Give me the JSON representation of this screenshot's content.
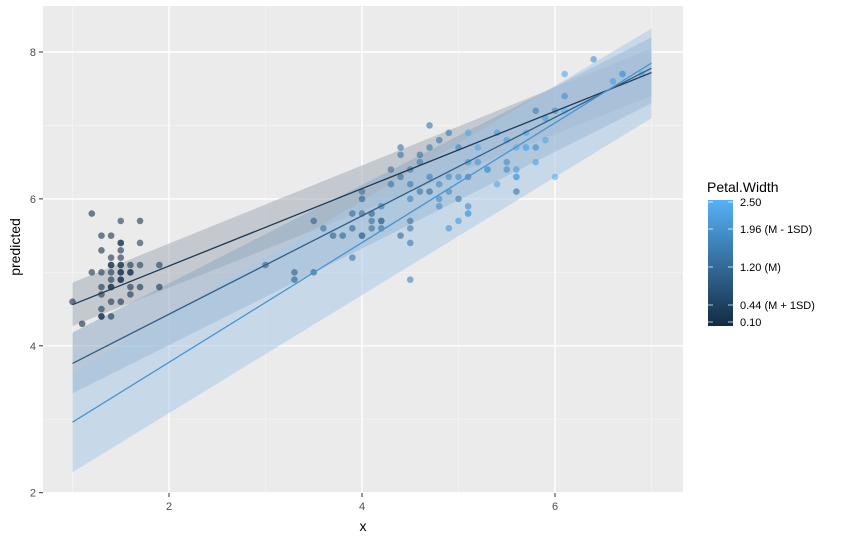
{
  "chart_data": {
    "type": "scatter",
    "title": "",
    "xlabel": "x",
    "ylabel": "predicted",
    "xlim": [
      0.75,
      7.3
    ],
    "ylim": [
      2.0,
      8.6
    ],
    "x_ticks": [
      2,
      4,
      6
    ],
    "y_ticks": [
      2,
      4,
      6,
      8
    ],
    "grid": true,
    "legend": {
      "title": "Petal.Width",
      "position": "right",
      "type": "colorbar",
      "range": [
        0.1,
        2.5
      ],
      "color_low": "#132B43",
      "color_high": "#56B1F7",
      "ticks": [
        {
          "value": 2.5,
          "label": "2.50"
        },
        {
          "value": 1.96,
          "label": "1.96 (M - 1SD)"
        },
        {
          "value": 1.2,
          "label": "1.20 (M)"
        },
        {
          "value": 0.44,
          "label": "0.44 (M + 1SD)"
        },
        {
          "value": 0.1,
          "label": "0.10"
        }
      ]
    },
    "series": [
      {
        "name": "0.44 (M + 1SD)",
        "type": "line",
        "color": "#1f3a54",
        "x": [
          1,
          7
        ],
        "y": [
          4.56,
          7.72
        ],
        "ribbon_low": [
          4.27,
          7.4
        ],
        "ribbon_high": [
          4.86,
          8.05
        ],
        "ribbon_color": "#a3adb8"
      },
      {
        "name": "1.20 (M)",
        "type": "line",
        "color": "#2f5f86",
        "x": [
          1,
          7
        ],
        "y": [
          3.76,
          7.78
        ],
        "ribbon_low": [
          3.35,
          7.3
        ],
        "ribbon_high": [
          4.18,
          8.2
        ],
        "ribbon_color": "#8fa9c4"
      },
      {
        "name": "1.96 (M - 1SD)",
        "type": "line",
        "color": "#4a93d0",
        "x": [
          1,
          7
        ],
        "y": [
          2.96,
          7.85
        ],
        "ribbon_low": [
          2.28,
          7.1
        ],
        "ribbon_high": [
          3.63,
          8.32
        ],
        "ribbon_color": "#a9c9e6"
      }
    ],
    "points": [
      [
        1.0,
        4.6,
        0.2
      ],
      [
        1.1,
        4.3,
        0.1
      ],
      [
        1.2,
        5.8,
        0.2
      ],
      [
        1.2,
        5.0,
        0.2
      ],
      [
        1.3,
        4.4,
        0.2
      ],
      [
        1.3,
        5.5,
        0.2
      ],
      [
        1.3,
        4.5,
        0.3
      ],
      [
        1.3,
        4.4,
        0.2
      ],
      [
        1.3,
        5.0,
        0.3
      ],
      [
        1.3,
        4.8,
        0.2
      ],
      [
        1.3,
        5.3,
        0.2
      ],
      [
        1.3,
        4.7,
        0.2
      ],
      [
        1.4,
        5.1,
        0.2
      ],
      [
        1.4,
        4.9,
        0.2
      ],
      [
        1.4,
        5.0,
        0.2
      ],
      [
        1.4,
        4.6,
        0.3
      ],
      [
        1.4,
        4.4,
        0.2
      ],
      [
        1.4,
        4.8,
        0.1
      ],
      [
        1.4,
        5.2,
        0.2
      ],
      [
        1.4,
        5.5,
        0.2
      ],
      [
        1.4,
        4.8,
        0.3
      ],
      [
        1.4,
        5.1,
        0.3
      ],
      [
        1.5,
        5.4,
        0.2
      ],
      [
        1.5,
        4.9,
        0.1
      ],
      [
        1.5,
        5.1,
        0.3
      ],
      [
        1.5,
        5.0,
        0.2
      ],
      [
        1.5,
        5.2,
        0.2
      ],
      [
        1.5,
        5.4,
        0.4
      ],
      [
        1.5,
        4.6,
        0.2
      ],
      [
        1.5,
        5.7,
        0.4
      ],
      [
        1.5,
        5.1,
        0.4
      ],
      [
        1.5,
        5.3,
        0.2
      ],
      [
        1.6,
        4.8,
        0.2
      ],
      [
        1.6,
        5.0,
        0.4
      ],
      [
        1.6,
        4.7,
        0.2
      ],
      [
        1.6,
        5.0,
        0.2
      ],
      [
        1.6,
        5.1,
        0.2
      ],
      [
        1.7,
        5.4,
        0.4
      ],
      [
        1.7,
        5.7,
        0.3
      ],
      [
        1.7,
        5.1,
        0.5
      ],
      [
        1.7,
        4.8,
        0.2
      ],
      [
        1.9,
        5.1,
        0.4
      ],
      [
        1.9,
        4.8,
        0.2
      ],
      [
        1.5,
        4.9,
        0.2
      ],
      [
        1.5,
        5.0,
        0.2
      ],
      [
        3.0,
        5.1,
        1.1
      ],
      [
        3.3,
        4.9,
        1.0
      ],
      [
        3.3,
        5.0,
        1.0
      ],
      [
        3.5,
        5.7,
        1.0
      ],
      [
        3.5,
        5.0,
        1.0
      ],
      [
        3.6,
        5.6,
        1.3
      ],
      [
        3.7,
        5.5,
        1.0
      ],
      [
        3.8,
        5.5,
        1.1
      ],
      [
        3.9,
        5.2,
        1.4
      ],
      [
        3.9,
        5.6,
        1.1
      ],
      [
        3.9,
        5.8,
        1.2
      ],
      [
        4.0,
        6.0,
        1.0
      ],
      [
        4.0,
        5.5,
        1.3
      ],
      [
        4.0,
        5.8,
        1.2
      ],
      [
        4.0,
        6.1,
        1.3
      ],
      [
        4.0,
        5.5,
        1.3
      ],
      [
        4.1,
        5.8,
        1.0
      ],
      [
        4.1,
        5.7,
        1.3
      ],
      [
        4.1,
        5.6,
        1.3
      ],
      [
        4.2,
        5.7,
        1.2
      ],
      [
        4.2,
        5.9,
        1.5
      ],
      [
        4.2,
        5.6,
        1.3
      ],
      [
        4.2,
        5.7,
        1.3
      ],
      [
        4.3,
        6.2,
        1.3
      ],
      [
        4.3,
        6.4,
        1.3
      ],
      [
        4.4,
        6.7,
        1.4
      ],
      [
        4.4,
        6.3,
        1.3
      ],
      [
        4.4,
        5.5,
        1.2
      ],
      [
        4.4,
        6.6,
        1.4
      ],
      [
        4.5,
        6.4,
        1.5
      ],
      [
        4.5,
        5.6,
        1.5
      ],
      [
        4.5,
        6.2,
        1.5
      ],
      [
        4.5,
        6.0,
        1.6
      ],
      [
        4.5,
        5.4,
        1.5
      ],
      [
        4.5,
        4.9,
        1.7
      ],
      [
        4.5,
        5.7,
        1.3
      ],
      [
        4.6,
        6.5,
        1.5
      ],
      [
        4.6,
        6.6,
        1.3
      ],
      [
        4.6,
        6.1,
        1.4
      ],
      [
        4.7,
        7.0,
        1.4
      ],
      [
        4.7,
        6.1,
        1.2
      ],
      [
        4.7,
        6.7,
        1.5
      ],
      [
        4.7,
        6.3,
        1.6
      ],
      [
        4.8,
        6.8,
        1.4
      ],
      [
        4.8,
        5.9,
        1.8
      ],
      [
        4.8,
        6.0,
        1.8
      ],
      [
        4.8,
        6.2,
        1.8
      ],
      [
        4.9,
        6.9,
        1.5
      ],
      [
        4.9,
        6.3,
        1.8
      ],
      [
        4.9,
        6.1,
        1.8
      ],
      [
        4.9,
        5.6,
        2.0
      ],
      [
        5.0,
        6.7,
        1.7
      ],
      [
        5.0,
        6.0,
        1.5
      ],
      [
        5.0,
        6.3,
        1.9
      ],
      [
        5.0,
        5.7,
        2.0
      ],
      [
        5.1,
        5.8,
        1.9
      ],
      [
        5.1,
        6.3,
        1.5
      ],
      [
        5.1,
        5.8,
        2.4
      ],
      [
        5.1,
        6.5,
        2.0
      ],
      [
        5.1,
        6.9,
        2.3
      ],
      [
        5.1,
        5.9,
        1.8
      ],
      [
        5.2,
        6.7,
        2.3
      ],
      [
        5.2,
        6.5,
        2.0
      ],
      [
        5.3,
        6.4,
        2.3
      ],
      [
        5.3,
        6.4,
        1.9
      ],
      [
        5.4,
        6.9,
        2.1
      ],
      [
        5.4,
        6.2,
        2.3
      ],
      [
        5.5,
        6.5,
        1.8
      ],
      [
        5.5,
        6.8,
        2.1
      ],
      [
        5.5,
        6.4,
        1.8
      ],
      [
        5.6,
        6.3,
        1.8
      ],
      [
        5.6,
        6.4,
        2.1
      ],
      [
        5.6,
        6.7,
        2.4
      ],
      [
        5.6,
        6.1,
        1.4
      ],
      [
        5.6,
        6.3,
        2.4
      ],
      [
        5.7,
        6.7,
        2.1
      ],
      [
        5.7,
        6.9,
        2.3
      ],
      [
        5.7,
        6.7,
        2.5
      ],
      [
        5.8,
        7.2,
        1.6
      ],
      [
        5.8,
        6.5,
        2.2
      ],
      [
        5.8,
        6.7,
        1.8
      ],
      [
        5.9,
        7.1,
        2.1
      ],
      [
        5.9,
        6.8,
        2.3
      ],
      [
        6.0,
        7.2,
        1.8
      ],
      [
        6.0,
        6.3,
        2.5
      ],
      [
        6.1,
        7.7,
        2.3
      ],
      [
        6.1,
        7.4,
        1.9
      ],
      [
        6.1,
        7.2,
        2.5
      ],
      [
        6.4,
        7.9,
        2.0
      ],
      [
        6.6,
        7.6,
        2.1
      ],
      [
        6.7,
        7.7,
        2.0
      ],
      [
        6.7,
        7.7,
        2.2
      ],
      [
        6.9,
        7.7,
        2.3
      ]
    ]
  }
}
